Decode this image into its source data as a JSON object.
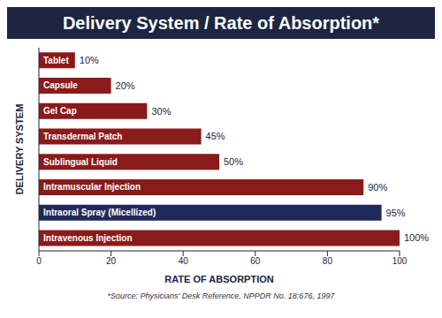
{
  "chart_data": {
    "type": "bar",
    "orientation": "horizontal",
    "title": "Delivery System / Rate of Absorption*",
    "x_label": "RATE OF ABSORPTION",
    "y_label": "DELIVERY SYSTEM",
    "categories": [
      "Tablet",
      "Capsule",
      "Gel Cap",
      "Transdermal Patch",
      "Sublingual Liquid",
      "Intramuscular Injection",
      "Intraoral Spray (Micellized)",
      "Intravenous Injection"
    ],
    "values": [
      10,
      20,
      30,
      45,
      50,
      90,
      95,
      100
    ],
    "value_labels": [
      "10%",
      "20%",
      "30%",
      "45%",
      "50%",
      "90%",
      "95%",
      "100%"
    ],
    "data_labels": true,
    "colors": [
      "#8b1a1a",
      "#8b1a1a",
      "#8b1a1a",
      "#8b1a1a",
      "#8b1a1a",
      "#8b1a1a",
      "#1f2a5a",
      "#8b1a1a"
    ],
    "xlim": [
      0,
      100
    ],
    "xticks": [
      0,
      20,
      40,
      60,
      80,
      100
    ],
    "grid": false,
    "tick_labels": "x",
    "annotations": [
      "*Source: Physicians' Desk Reference, NPPDR No. 18:676, 1997"
    ]
  }
}
